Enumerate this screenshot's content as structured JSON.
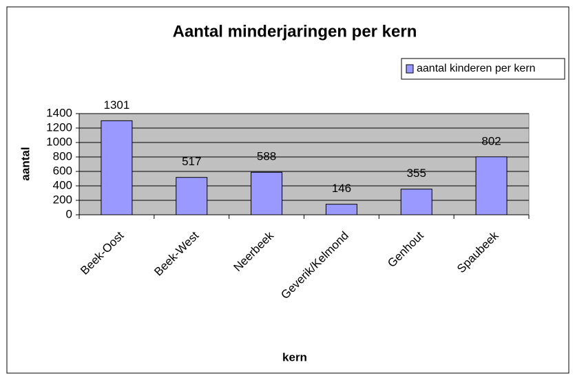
{
  "chart_data": {
    "type": "bar",
    "title": "Aantal minderjaringen per kern",
    "x_label": "kern",
    "y_label": "aantal",
    "categories": [
      "Beek-Oost",
      "Beek-West",
      "Neerbeek",
      "Geverik/Kelmond",
      "Genhout",
      "Spaubeek"
    ],
    "series": [
      {
        "name": "aantal kinderen per kern",
        "color": "#9999ff",
        "values": [
          1301,
          517,
          588,
          146,
          355,
          802
        ]
      }
    ],
    "ylim": [
      0,
      1400
    ],
    "yticks": [
      0,
      200,
      400,
      600,
      800,
      1000,
      1200,
      1400
    ],
    "grid": true,
    "legend": "top-right",
    "show_values": true
  }
}
